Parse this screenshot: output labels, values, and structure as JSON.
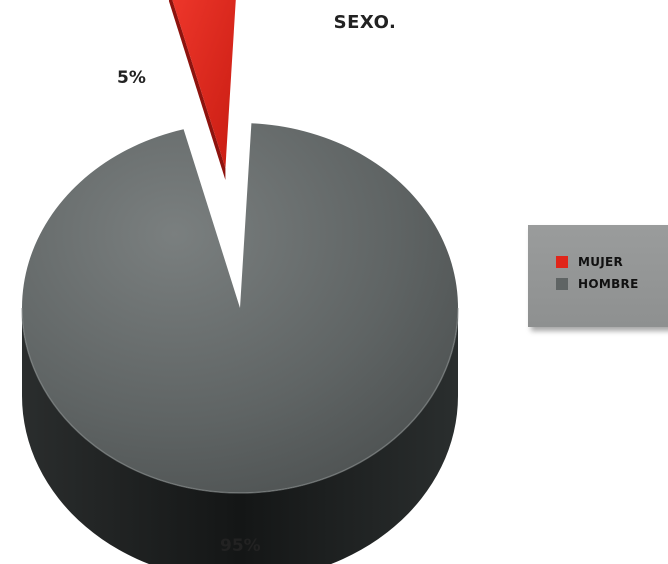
{
  "chart_data": {
    "type": "pie",
    "title": "SEXO.",
    "slices": [
      {
        "name": "MUJER",
        "value": 5,
        "label": "5%",
        "color": "#e0251a"
      },
      {
        "name": "HOMBRE",
        "value": 95,
        "label": "95%",
        "color": "#5f6464"
      }
    ],
    "legend_placement": "right",
    "style": "3d-exploded"
  },
  "colors": {
    "hombre_top": "#5f6464",
    "hombre_side": "#1e2121",
    "mujer_top": "#e0251a",
    "mujer_side": "#8e130e",
    "legend_bg": "#959797"
  }
}
